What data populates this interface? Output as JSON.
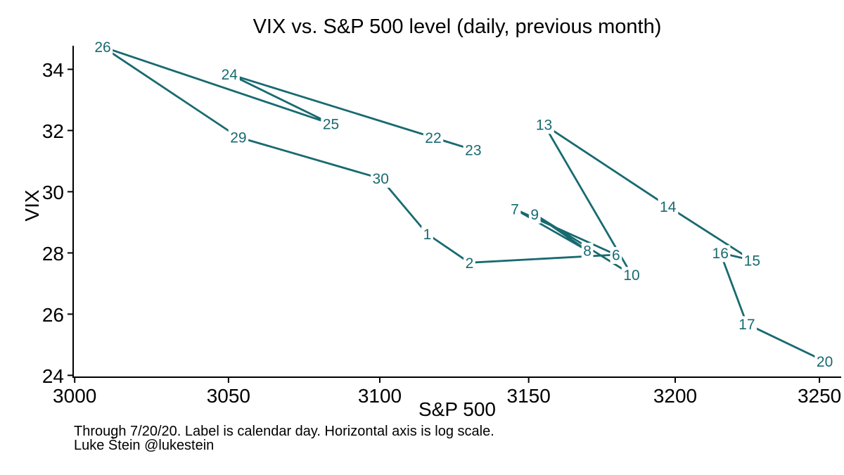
{
  "chart_data": {
    "type": "scatter",
    "title": "VIX vs. S&P 500 level (daily, previous month)",
    "xlabel": "S&P 500",
    "ylabel": "VIX",
    "x_scale": "log",
    "y_scale": "linear",
    "grid": false,
    "legend": "none",
    "x_ticks": [
      3000,
      3050,
      3100,
      3150,
      3200,
      3250
    ],
    "y_ticks": [
      24,
      26,
      28,
      30,
      32,
      34
    ],
    "x_domain": [
      2999.5,
      3257.6
    ],
    "y_domain": [
      23.94,
      34.77
    ],
    "line_color": "#186a70",
    "axis_color": "#000000",
    "background_color": "#ffffff",
    "points": [
      {
        "label": "22",
        "x": 3117.86,
        "y": 31.77
      },
      {
        "label": "23",
        "x": 3131.29,
        "y": 31.37
      },
      {
        "label": "24",
        "x": 3050.33,
        "y": 33.84
      },
      {
        "label": "25",
        "x": 3083.76,
        "y": 32.22
      },
      {
        "label": "26",
        "x": 3009.05,
        "y": 34.73
      },
      {
        "label": "29",
        "x": 3053.24,
        "y": 31.78
      },
      {
        "label": "30",
        "x": 3100.29,
        "y": 30.43
      },
      {
        "label": "1",
        "x": 3115.86,
        "y": 28.62
      },
      {
        "label": "2",
        "x": 3130.01,
        "y": 27.68
      },
      {
        "label": "6",
        "x": 3179.72,
        "y": 27.94
      },
      {
        "label": "7",
        "x": 3145.32,
        "y": 29.43
      },
      {
        "label": "8",
        "x": 3169.94,
        "y": 28.08
      },
      {
        "label": "9",
        "x": 3152.05,
        "y": 29.26
      },
      {
        "label": "10",
        "x": 3185.04,
        "y": 27.29
      },
      {
        "label": "13",
        "x": 3155.22,
        "y": 32.19
      },
      {
        "label": "14",
        "x": 3197.52,
        "y": 29.52
      },
      {
        "label": "15",
        "x": 3226.56,
        "y": 27.76
      },
      {
        "label": "16",
        "x": 3215.57,
        "y": 28.0
      },
      {
        "label": "17",
        "x": 3224.73,
        "y": 25.68
      },
      {
        "label": "20",
        "x": 3251.84,
        "y": 24.46
      }
    ],
    "notes": [
      "Through 7/20/20. Label is calendar day. Horizontal axis is log scale.",
      "Luke Štein @lukestein"
    ]
  }
}
